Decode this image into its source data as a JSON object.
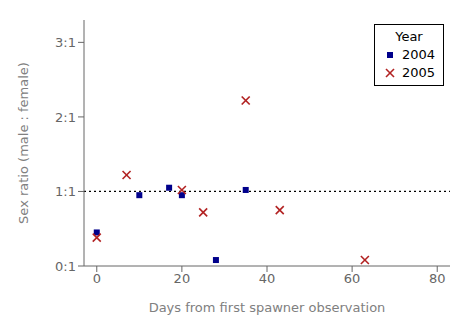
{
  "chart_data": {
    "type": "scatter",
    "xlabel": "Days from first spawner observation",
    "ylabel": "Sex ratio (male : female)",
    "xlim": [
      -3,
      83
    ],
    "ylim": [
      0,
      3.3
    ],
    "xticks": [
      0,
      20,
      40,
      60,
      80
    ],
    "yticks": [
      {
        "value": 0,
        "label": "0:1"
      },
      {
        "value": 1,
        "label": "1:1"
      },
      {
        "value": 2,
        "label": "2:1"
      },
      {
        "value": 3,
        "label": "3:1"
      }
    ],
    "grid": false,
    "legend": "upper right",
    "legend_title": "Year",
    "hlines": [
      {
        "y": 1.0,
        "color": "#000000",
        "line_style": "dotted"
      }
    ],
    "series": [
      {
        "name": "2004",
        "color": "#00008B",
        "marker": "square",
        "x": [
          0,
          10,
          17,
          20,
          28,
          35
        ],
        "values": [
          0.45,
          0.95,
          1.05,
          0.95,
          0.08,
          1.02
        ]
      },
      {
        "name": "2005",
        "color": "#B22222",
        "marker": "x",
        "x": [
          0,
          7,
          20,
          25,
          35,
          43,
          63
        ],
        "values": [
          0.38,
          1.22,
          1.02,
          0.72,
          2.22,
          0.75,
          0.08
        ]
      }
    ]
  }
}
